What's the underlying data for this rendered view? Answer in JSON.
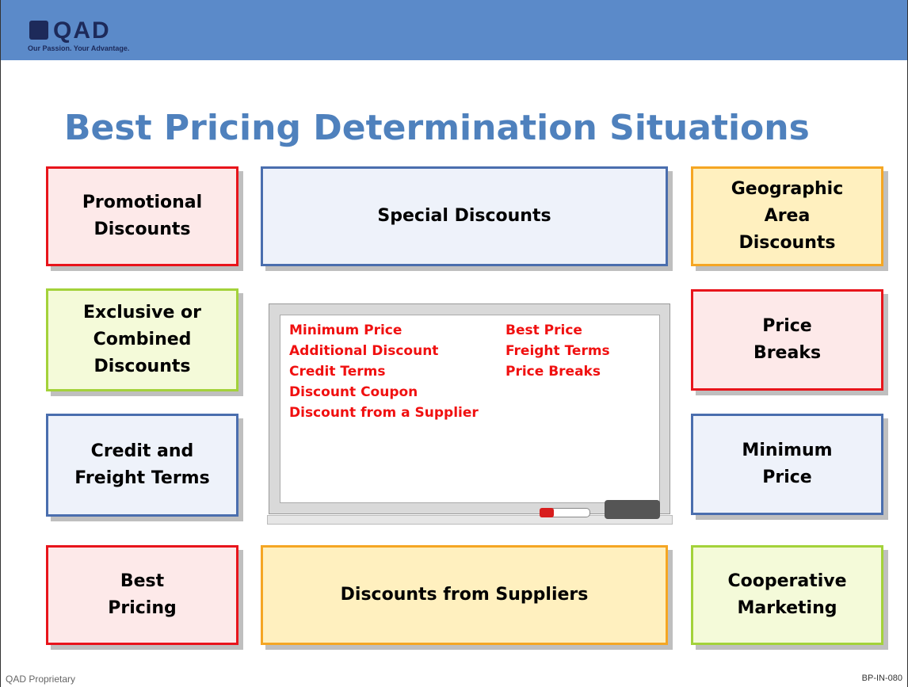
{
  "header": {
    "logo": "QAD",
    "tagline": "Our Passion. Your Advantage."
  },
  "title": "Best Pricing Determination Situations",
  "boxes": [
    {
      "lines": [
        "Promotional",
        "Discounts"
      ]
    },
    {
      "lines": [
        "Special Discounts"
      ]
    },
    {
      "lines": [
        "Geographic",
        "Area",
        "Discounts"
      ]
    },
    {
      "lines": [
        "Exclusive or",
        "Combined",
        "Discounts"
      ]
    },
    {
      "lines": [
        "Price",
        "Breaks"
      ]
    },
    {
      "lines": [
        "Credit and",
        "Freight Terms"
      ]
    },
    {
      "lines": [
        "Minimum",
        "Price"
      ]
    },
    {
      "lines": [
        "Best",
        "Pricing"
      ]
    },
    {
      "lines": [
        "Discounts from Suppliers"
      ]
    },
    {
      "lines": [
        "Cooperative",
        "Marketing"
      ]
    }
  ],
  "whiteboard": {
    "left": [
      "Minimum Price",
      "Additional Discount",
      "Credit Terms",
      "Discount Coupon",
      "Discount from a Supplier"
    ],
    "right": [
      "Best Price",
      "Freight Terms",
      "Price Breaks"
    ]
  },
  "footer": {
    "left": "QAD Proprietary",
    "right": "BP-IN-080"
  }
}
